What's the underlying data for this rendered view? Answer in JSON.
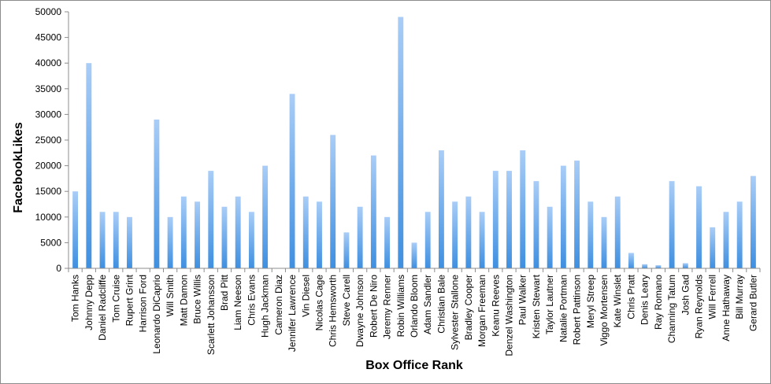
{
  "chart_data": {
    "type": "bar",
    "title": "",
    "xlabel": "Box Office Rank",
    "ylabel": "FacebookLikes",
    "ylim": [
      0,
      50000
    ],
    "yticks": [
      0,
      5000,
      10000,
      15000,
      20000,
      25000,
      30000,
      35000,
      40000,
      45000,
      50000
    ],
    "grid": false,
    "legend": "none",
    "bar_color_top": "#a9cdf7",
    "bar_color_bottom": "#3f8fe0",
    "categories": [
      "Tom Hanks",
      "Johnny Depp",
      "Daniel Radcliffe",
      "Tom Cruise",
      "Rupert Grint",
      "Harrison Ford",
      "Leonardo DiCaprio",
      "Will Smith",
      "Matt Damon",
      "Bruce Willis",
      "Scarlett Johansson",
      "Brad Pitt",
      "Liam Neeson",
      "Chris Evans",
      "Hugh Jackman",
      "Cameron Diaz",
      "Jennifer Lawrence",
      "Vin Diesel",
      "Nicolas Cage",
      "Chris Hemsworth",
      "Steve Carell",
      "Dwayne Johnson",
      "Robert De Niro",
      "Jeremy Renner",
      "Robin Williams",
      "Orlando Bloom",
      "Adam Sandler",
      "Christian Bale",
      "Sylvester Stallone",
      "Bradley Cooper",
      "Morgan Freeman",
      "Keanu Reeves",
      "Denzel Washington",
      "Paul Walker",
      "Kristen Stewart",
      "Taylor Lautner",
      "Natalie Portman",
      "Robert Pattinson",
      "Meryl Streep",
      "Viggo Mortensen",
      "Kate Winslet",
      "Chris Pratt",
      "Denis Leary",
      "Ray Romano",
      "Channing Tatum",
      "Josh Gad",
      "Ryan Reynolds",
      "Will Ferrell",
      "Anne Hathaway",
      "Bill Murray",
      "Gerard Butler"
    ],
    "values": [
      15000,
      40000,
      11000,
      11000,
      10000,
      0,
      29000,
      10000,
      14000,
      13000,
      19000,
      12000,
      14000,
      11000,
      20000,
      0,
      34000,
      14000,
      13000,
      26000,
      7000,
      12000,
      22000,
      10000,
      49000,
      5000,
      11000,
      23000,
      13000,
      14000,
      11000,
      19000,
      19000,
      23000,
      17000,
      12000,
      20000,
      21000,
      13000,
      10000,
      14000,
      3000,
      800,
      600,
      17000,
      1000,
      16000,
      8000,
      11000,
      13000,
      18000
    ]
  }
}
